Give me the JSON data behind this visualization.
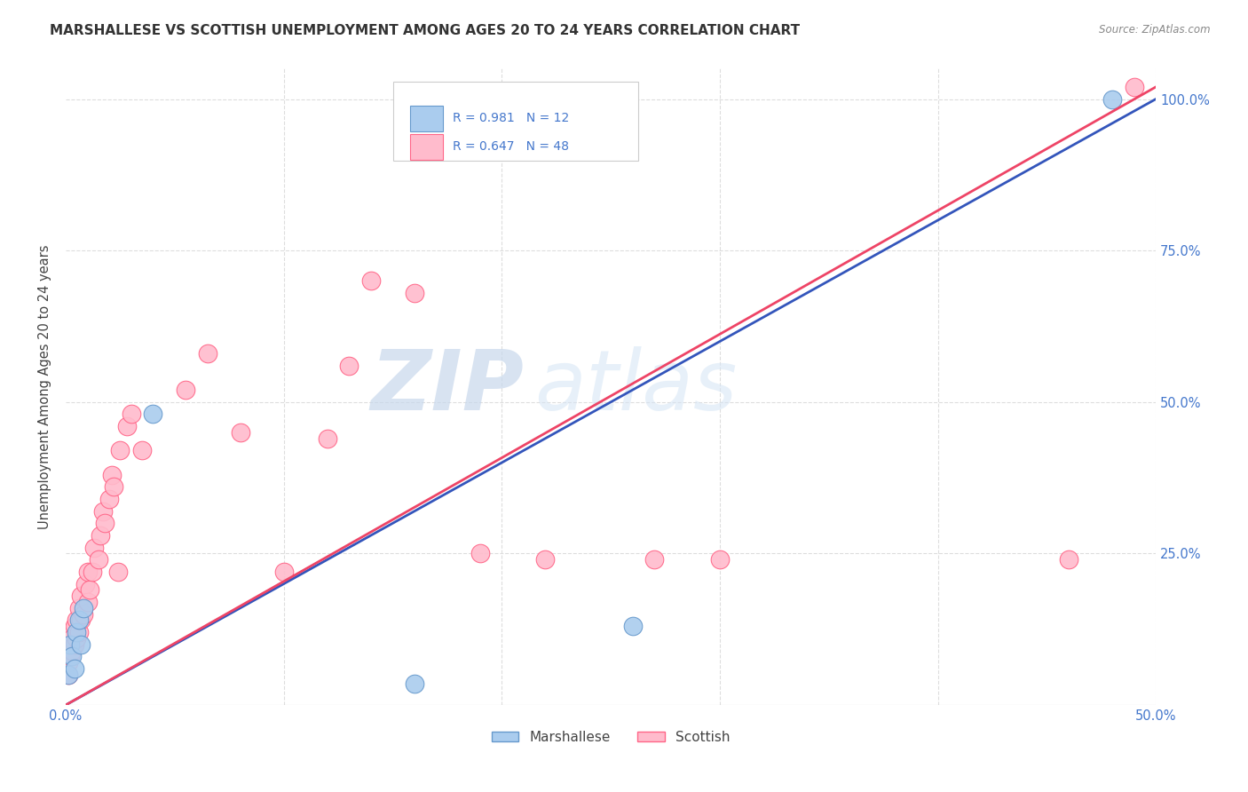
{
  "title": "MARSHALLESE VS SCOTTISH UNEMPLOYMENT AMONG AGES 20 TO 24 YEARS CORRELATION CHART",
  "source": "Source: ZipAtlas.com",
  "ylabel": "Unemployment Among Ages 20 to 24 years",
  "watermark_zip": "ZIP",
  "watermark_atlas": "atlas",
  "xlim": [
    0.0,
    0.5
  ],
  "ylim": [
    0.0,
    1.05
  ],
  "blue_scatter_x": [
    0.001,
    0.002,
    0.003,
    0.004,
    0.005,
    0.006,
    0.007,
    0.008,
    0.04,
    0.16,
    0.26,
    0.48
  ],
  "blue_scatter_y": [
    0.05,
    0.1,
    0.08,
    0.06,
    0.12,
    0.14,
    0.1,
    0.16,
    0.48,
    0.035,
    0.13,
    1.0
  ],
  "pink_scatter_x": [
    0.001,
    0.001,
    0.001,
    0.002,
    0.002,
    0.003,
    0.003,
    0.004,
    0.004,
    0.005,
    0.005,
    0.006,
    0.006,
    0.007,
    0.007,
    0.008,
    0.009,
    0.01,
    0.01,
    0.011,
    0.012,
    0.013,
    0.015,
    0.016,
    0.017,
    0.018,
    0.02,
    0.021,
    0.022,
    0.024,
    0.025,
    0.028,
    0.03,
    0.035,
    0.055,
    0.065,
    0.08,
    0.1,
    0.12,
    0.13,
    0.14,
    0.16,
    0.19,
    0.22,
    0.27,
    0.3,
    0.46,
    0.49
  ],
  "pink_scatter_y": [
    0.05,
    0.07,
    0.1,
    0.08,
    0.12,
    0.09,
    0.11,
    0.1,
    0.13,
    0.11,
    0.14,
    0.12,
    0.16,
    0.14,
    0.18,
    0.15,
    0.2,
    0.17,
    0.22,
    0.19,
    0.22,
    0.26,
    0.24,
    0.28,
    0.32,
    0.3,
    0.34,
    0.38,
    0.36,
    0.22,
    0.42,
    0.46,
    0.48,
    0.42,
    0.52,
    0.58,
    0.45,
    0.22,
    0.44,
    0.56,
    0.7,
    0.68,
    0.25,
    0.24,
    0.24,
    0.24,
    0.24,
    1.02
  ],
  "blue_line_x": [
    0.0,
    0.5
  ],
  "blue_line_y": [
    0.0,
    1.0
  ],
  "pink_line_x": [
    0.0,
    0.5
  ],
  "pink_line_y": [
    0.0,
    1.02
  ],
  "blue_R": "0.981",
  "blue_N": "12",
  "pink_R": "0.647",
  "pink_N": "48",
  "blue_color": "#6699CC",
  "blue_fill": "#AACCEE",
  "pink_color": "#FF6688",
  "pink_fill": "#FFBBCC",
  "blue_line_color": "#3355BB",
  "pink_line_color": "#EE4466",
  "bg_color": "#FFFFFF",
  "grid_color": "#DDDDDD",
  "title_color": "#333333",
  "axis_label_color": "#444444",
  "tick_label_color_blue": "#4477CC",
  "source_color": "#888888"
}
